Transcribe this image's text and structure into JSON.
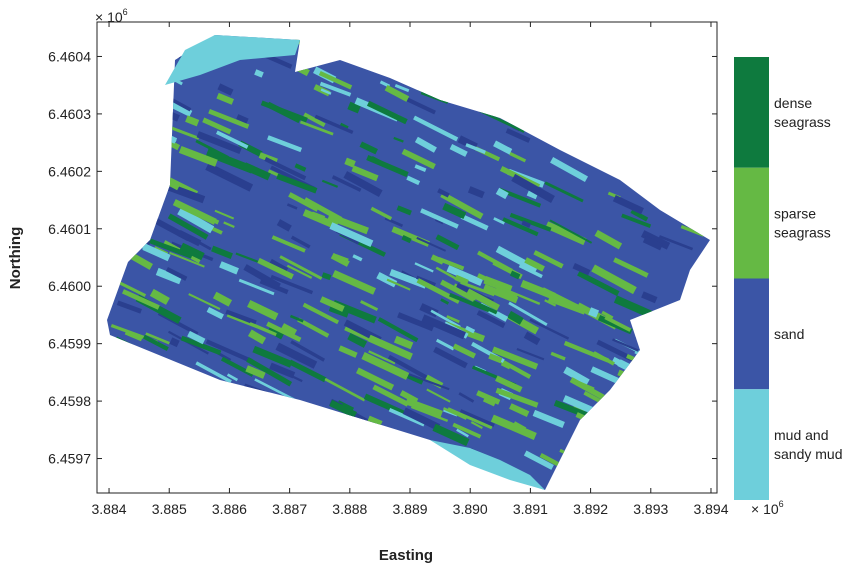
{
  "chart_data": {
    "type": "heatmap",
    "title": "",
    "xlabel": "Easting",
    "ylabel": "Northing",
    "x_multiplier": "× 10",
    "x_multiplier_exp": "6",
    "y_multiplier": "× 10",
    "y_multiplier_exp": "6",
    "xlim": [
      3.8838,
      3.8941
    ],
    "ylim": [
      6.45964,
      6.46046
    ],
    "x_ticks": [
      "3.884",
      "3.885",
      "3.886",
      "3.887",
      "3.888",
      "3.889",
      "3.890",
      "3.891",
      "3.892",
      "3.893",
      "3.894"
    ],
    "x_tick_values": [
      3.884,
      3.885,
      3.886,
      3.887,
      3.888,
      3.889,
      3.89,
      3.891,
      3.892,
      3.893,
      3.894
    ],
    "y_ticks": [
      "6.4597",
      "6.4598",
      "6.4599",
      "6.4600",
      "6.4601",
      "6.4602",
      "6.4603",
      "6.4604"
    ],
    "y_tick_values": [
      6.4597,
      6.4598,
      6.4599,
      6.46,
      6.4601,
      6.4602,
      6.4603,
      6.4604
    ],
    "grid": false,
    "classes": [
      {
        "lines": [
          "dense",
          "seagrass"
        ],
        "color": "#0e7a3e"
      },
      {
        "lines": [
          "sparse",
          "seagrass"
        ],
        "color": "#65b944"
      },
      {
        "lines": [
          "sand"
        ],
        "color": "#3b55a6"
      },
      {
        "lines": [
          "mud and",
          "sandy mud"
        ],
        "color": "#6ecfdb"
      }
    ]
  }
}
